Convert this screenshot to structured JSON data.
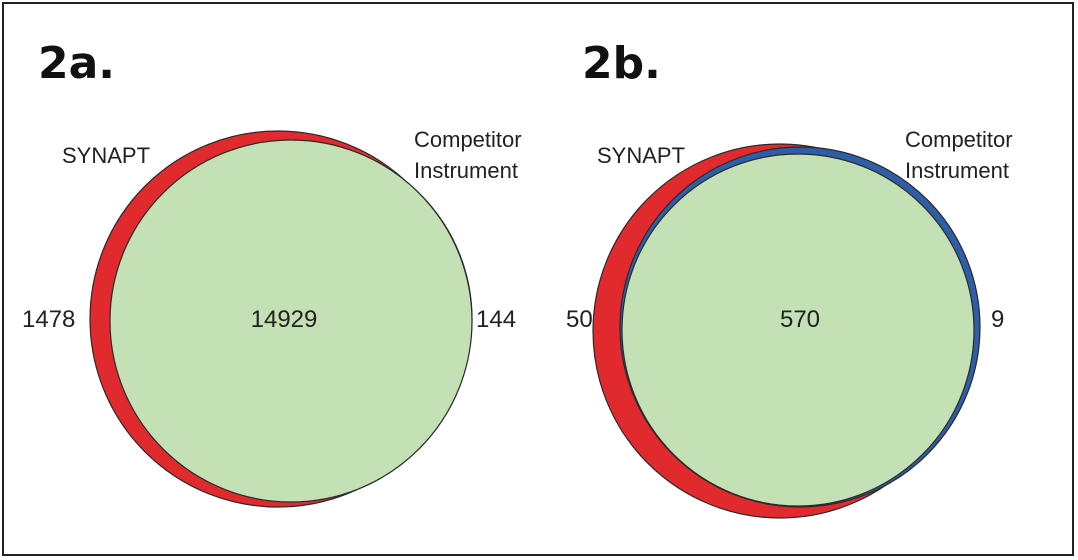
{
  "colors": {
    "synapt": "#e12a2e",
    "competitor": "#2e5ea8",
    "overlap": "#c3e1b4",
    "outline": "#2a2a2a"
  },
  "panels": [
    {
      "id": "2a",
      "title": "2a.",
      "left_set": {
        "label": "SYNAPT",
        "unique_count": "1478"
      },
      "right_set": {
        "label_line1": "Competitor",
        "label_line2": "Instrument",
        "unique_count": "144"
      },
      "overlap_count": "14929"
    },
    {
      "id": "2b",
      "title": "2b.",
      "left_set": {
        "label": "SYNAPT",
        "unique_count": "50"
      },
      "right_set": {
        "label_line1": "Competitor",
        "label_line2": "Instrument",
        "unique_count": "9"
      },
      "overlap_count": "570"
    }
  ]
}
